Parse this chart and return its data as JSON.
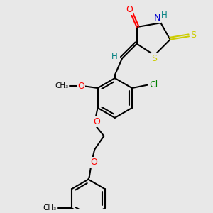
{
  "bg_color": "#e8e8e8",
  "bond_color": "#000000",
  "bond_width": 1.5,
  "atom_colors": {
    "O": "#ff0000",
    "N": "#0000cd",
    "S": "#cccc00",
    "Cl": "#008000",
    "H_teal": "#008080",
    "C": "#000000"
  },
  "xlim": [
    0,
    10
  ],
  "ylim": [
    0,
    10
  ]
}
